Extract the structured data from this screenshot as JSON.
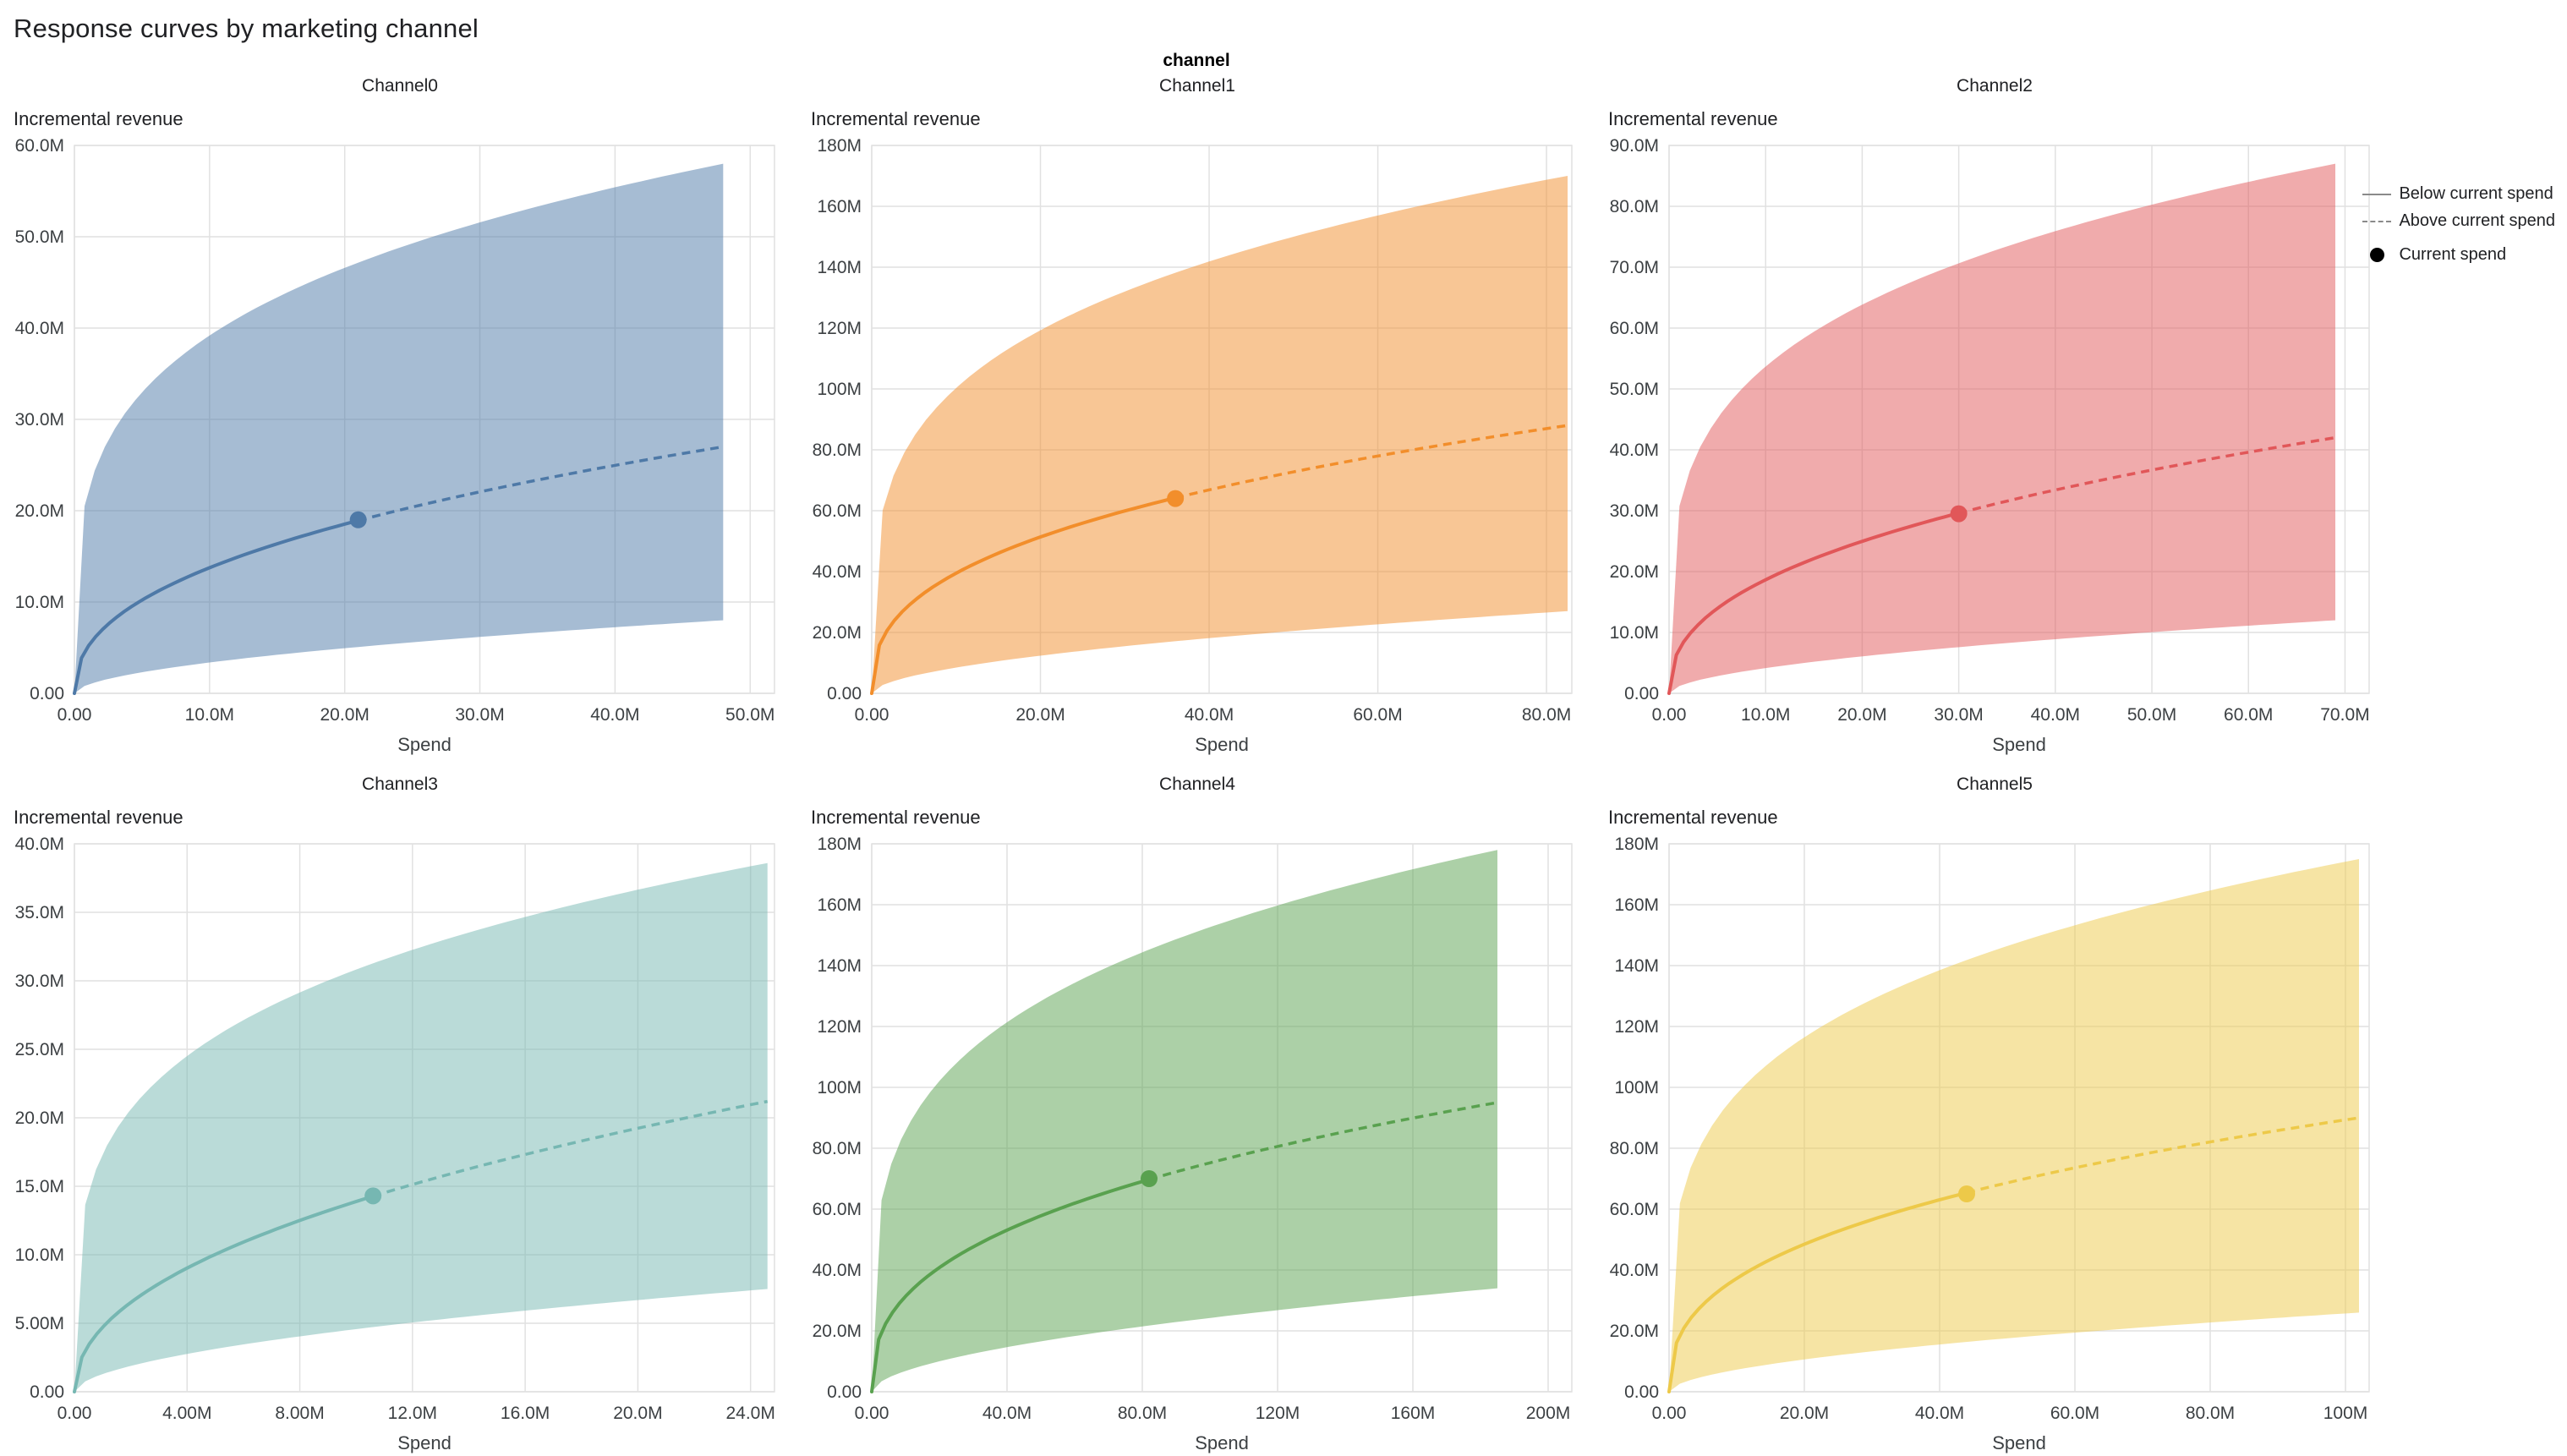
{
  "page": {
    "title": "Response curves by marketing channel",
    "facet_label": "channel"
  },
  "legend": {
    "items": [
      {
        "label": "Below current spend",
        "swatch": "solid-line"
      },
      {
        "label": "Above current spend",
        "swatch": "dashed-line"
      },
      {
        "label": "Current spend",
        "swatch": "dot"
      }
    ]
  },
  "chart_data": {
    "type": "line",
    "title": "Response curves by marketing channel",
    "facet_label": "channel",
    "xlabel": "Spend",
    "ylabel": "Incremental revenue",
    "units": "millions (M)",
    "grid": true,
    "legend_position": "top-right",
    "description": "Six faceted saturation response curves with shaded uncertainty bands; solid line below current spend, dashed line above current spend, dot at current spend.",
    "charts": [
      {
        "title": "Channel0",
        "xlabel": "Spend",
        "ylabel": "Incremental revenue",
        "color": "#4E79A7",
        "x_plot_max": 51.8,
        "y_plot_max": 60,
        "x_data_max": 48,
        "current_spend": {
          "x": 21,
          "y": 19
        },
        "mean_end": 27,
        "band_upper_end": 58,
        "band_lower_end": 8,
        "exp_mean": 0.43,
        "exp_upper": 0.25,
        "exp_lower": 0.55,
        "x_ticks": [
          {
            "v": 0,
            "label": "0.00"
          },
          {
            "v": 10,
            "label": "10.0M"
          },
          {
            "v": 20,
            "label": "20.0M"
          },
          {
            "v": 30,
            "label": "30.0M"
          },
          {
            "v": 40,
            "label": "40.0M"
          },
          {
            "v": 50,
            "label": "50.0M"
          }
        ],
        "y_ticks": [
          {
            "v": 0,
            "label": "0.00"
          },
          {
            "v": 10,
            "label": "10.0M"
          },
          {
            "v": 20,
            "label": "20.0M"
          },
          {
            "v": 30,
            "label": "30.0M"
          },
          {
            "v": 40,
            "label": "40.0M"
          },
          {
            "v": 50,
            "label": "50.0M"
          },
          {
            "v": 60,
            "label": "60.0M"
          }
        ]
      },
      {
        "title": "Channel1",
        "xlabel": "Spend",
        "ylabel": "Incremental revenue",
        "color": "#F28E2B",
        "x_plot_max": 83,
        "y_plot_max": 180,
        "x_data_max": 82.5,
        "current_spend": {
          "x": 36,
          "y": 64
        },
        "mean_end": 88,
        "band_upper_end": 170,
        "band_lower_end": 27,
        "exp_mean": 0.38,
        "exp_upper": 0.25,
        "exp_lower": 0.55,
        "x_ticks": [
          {
            "v": 0,
            "label": "0.00"
          },
          {
            "v": 20,
            "label": "20.0M"
          },
          {
            "v": 40,
            "label": "40.0M"
          },
          {
            "v": 60,
            "label": "60.0M"
          },
          {
            "v": 80,
            "label": "80.0M"
          }
        ],
        "y_ticks": [
          {
            "v": 0,
            "label": "0.00"
          },
          {
            "v": 20,
            "label": "20.0M"
          },
          {
            "v": 40,
            "label": "40.0M"
          },
          {
            "v": 60,
            "label": "60.0M"
          },
          {
            "v": 80,
            "label": "80.0M"
          },
          {
            "v": 100,
            "label": "100M"
          },
          {
            "v": 120,
            "label": "120M"
          },
          {
            "v": 140,
            "label": "140M"
          },
          {
            "v": 160,
            "label": "160M"
          },
          {
            "v": 180,
            "label": "180M"
          }
        ]
      },
      {
        "title": "Channel2",
        "xlabel": "Spend",
        "ylabel": "Incremental revenue",
        "color": "#E15759",
        "x_plot_max": 72.5,
        "y_plot_max": 90,
        "x_data_max": 69,
        "current_spend": {
          "x": 30,
          "y": 29.5
        },
        "mean_end": 42,
        "band_upper_end": 87,
        "band_lower_end": 12,
        "exp_mean": 0.42,
        "exp_upper": 0.25,
        "exp_lower": 0.55,
        "x_ticks": [
          {
            "v": 0,
            "label": "0.00"
          },
          {
            "v": 10,
            "label": "10.0M"
          },
          {
            "v": 20,
            "label": "20.0M"
          },
          {
            "v": 30,
            "label": "30.0M"
          },
          {
            "v": 40,
            "label": "40.0M"
          },
          {
            "v": 50,
            "label": "50.0M"
          },
          {
            "v": 60,
            "label": "60.0M"
          },
          {
            "v": 70,
            "label": "70.0M"
          }
        ],
        "y_ticks": [
          {
            "v": 0,
            "label": "0.00"
          },
          {
            "v": 10,
            "label": "10.0M"
          },
          {
            "v": 20,
            "label": "20.0M"
          },
          {
            "v": 30,
            "label": "30.0M"
          },
          {
            "v": 40,
            "label": "40.0M"
          },
          {
            "v": 50,
            "label": "50.0M"
          },
          {
            "v": 60,
            "label": "60.0M"
          },
          {
            "v": 70,
            "label": "70.0M"
          },
          {
            "v": 80,
            "label": "80.0M"
          },
          {
            "v": 90,
            "label": "90.0M"
          }
        ]
      },
      {
        "title": "Channel3",
        "xlabel": "Spend",
        "ylabel": "Incremental revenue",
        "color": "#76B7B2",
        "x_plot_max": 24.85,
        "y_plot_max": 40,
        "x_data_max": 24.6,
        "current_spend": {
          "x": 10.6,
          "y": 14.3
        },
        "mean_end": 21.2,
        "band_upper_end": 38.6,
        "band_lower_end": 7.5,
        "exp_mean": 0.47,
        "exp_upper": 0.25,
        "exp_lower": 0.55,
        "x_ticks": [
          {
            "v": 0,
            "label": "0.00"
          },
          {
            "v": 4,
            "label": "4.00M"
          },
          {
            "v": 8,
            "label": "8.00M"
          },
          {
            "v": 12,
            "label": "12.0M"
          },
          {
            "v": 16,
            "label": "16.0M"
          },
          {
            "v": 20,
            "label": "20.0M"
          },
          {
            "v": 24,
            "label": "24.0M"
          }
        ],
        "y_ticks": [
          {
            "v": 0,
            "label": "0.00"
          },
          {
            "v": 5,
            "label": "5.00M"
          },
          {
            "v": 10,
            "label": "10.0M"
          },
          {
            "v": 15,
            "label": "15.0M"
          },
          {
            "v": 20,
            "label": "20.0M"
          },
          {
            "v": 25,
            "label": "25.0M"
          },
          {
            "v": 30,
            "label": "30.0M"
          },
          {
            "v": 35,
            "label": "35.0M"
          },
          {
            "v": 40,
            "label": "40.0M"
          }
        ]
      },
      {
        "title": "Channel4",
        "xlabel": "Spend",
        "ylabel": "Incremental revenue",
        "color": "#59A14F",
        "x_plot_max": 207,
        "y_plot_max": 180,
        "x_data_max": 185,
        "current_spend": {
          "x": 82,
          "y": 70
        },
        "mean_end": 95,
        "band_upper_end": 178,
        "band_lower_end": 34,
        "exp_mean": 0.38,
        "exp_upper": 0.25,
        "exp_lower": 0.55,
        "x_ticks": [
          {
            "v": 0,
            "label": "0.00"
          },
          {
            "v": 40,
            "label": "40.0M"
          },
          {
            "v": 80,
            "label": "80.0M"
          },
          {
            "v": 120,
            "label": "120M"
          },
          {
            "v": 160,
            "label": "160M"
          },
          {
            "v": 200,
            "label": "200M"
          }
        ],
        "y_ticks": [
          {
            "v": 0,
            "label": "0.00"
          },
          {
            "v": 20,
            "label": "20.0M"
          },
          {
            "v": 40,
            "label": "40.0M"
          },
          {
            "v": 60,
            "label": "60.0M"
          },
          {
            "v": 80,
            "label": "80.0M"
          },
          {
            "v": 100,
            "label": "100M"
          },
          {
            "v": 120,
            "label": "120M"
          },
          {
            "v": 140,
            "label": "140M"
          },
          {
            "v": 160,
            "label": "160M"
          },
          {
            "v": 180,
            "label": "180M"
          }
        ]
      },
      {
        "title": "Channel5",
        "xlabel": "Spend",
        "ylabel": "Incremental revenue",
        "color": "#EDC949",
        "x_plot_max": 103.5,
        "y_plot_max": 180,
        "x_data_max": 102,
        "current_spend": {
          "x": 44,
          "y": 65
        },
        "mean_end": 90,
        "band_upper_end": 175,
        "band_lower_end": 26,
        "exp_mean": 0.38,
        "exp_upper": 0.25,
        "exp_lower": 0.55,
        "x_ticks": [
          {
            "v": 0,
            "label": "0.00"
          },
          {
            "v": 20,
            "label": "20.0M"
          },
          {
            "v": 40,
            "label": "40.0M"
          },
          {
            "v": 60,
            "label": "60.0M"
          },
          {
            "v": 80,
            "label": "80.0M"
          },
          {
            "v": 100,
            "label": "100M"
          }
        ],
        "y_ticks": [
          {
            "v": 0,
            "label": "0.00"
          },
          {
            "v": 20,
            "label": "20.0M"
          },
          {
            "v": 40,
            "label": "40.0M"
          },
          {
            "v": 60,
            "label": "60.0M"
          },
          {
            "v": 80,
            "label": "80.0M"
          },
          {
            "v": 100,
            "label": "100M"
          },
          {
            "v": 120,
            "label": "120M"
          },
          {
            "v": 140,
            "label": "140M"
          },
          {
            "v": 160,
            "label": "160M"
          },
          {
            "v": 180,
            "label": "180M"
          }
        ]
      }
    ]
  }
}
